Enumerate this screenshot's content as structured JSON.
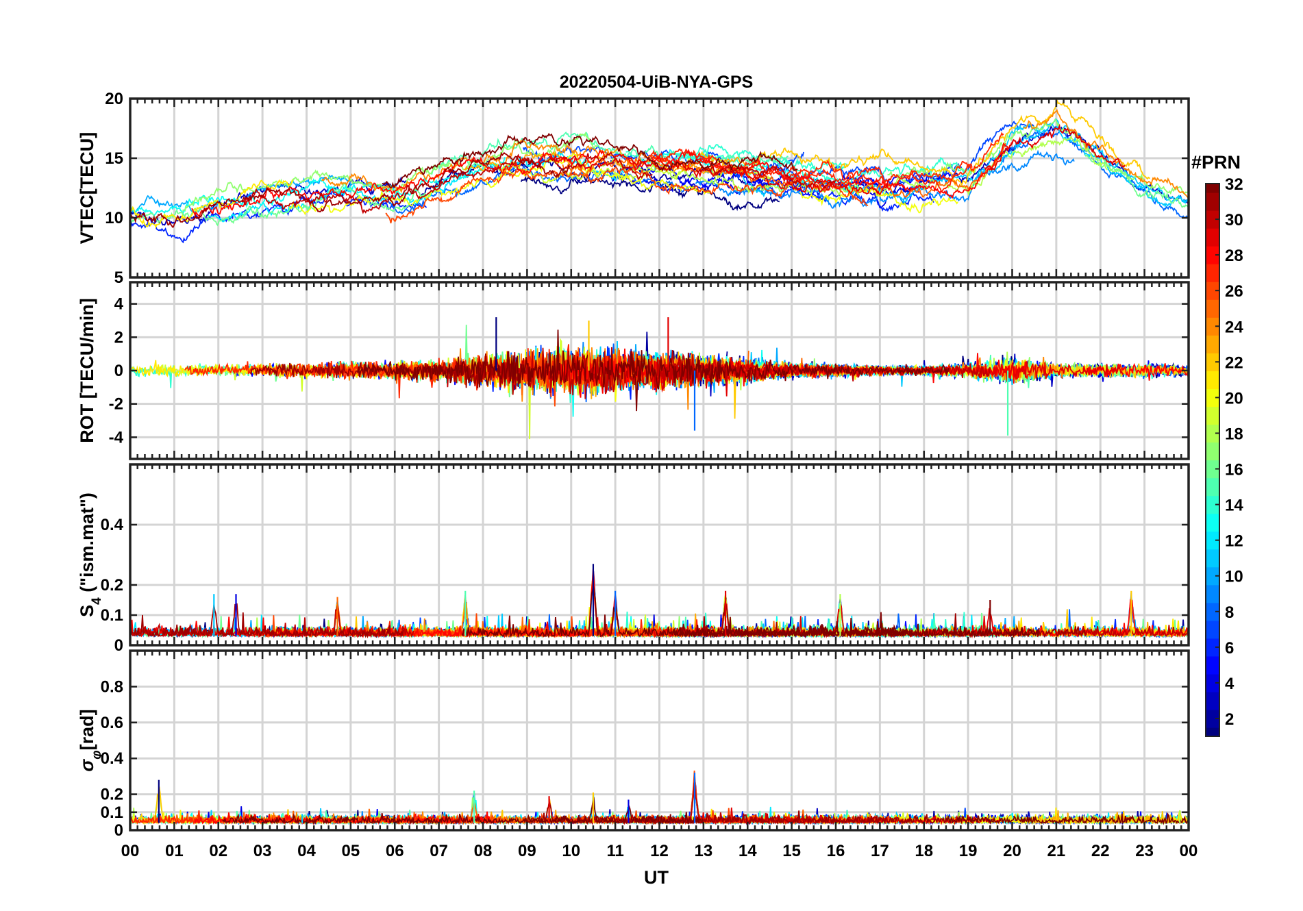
{
  "figure_title": "20220504-UiB-NYA-GPS",
  "x_axis": {
    "label": "UT",
    "tick_labels": [
      "00",
      "01",
      "02",
      "03",
      "04",
      "05",
      "06",
      "07",
      "08",
      "09",
      "10",
      "11",
      "12",
      "13",
      "14",
      "15",
      "16",
      "17",
      "18",
      "19",
      "20",
      "21",
      "22",
      "23",
      "00"
    ]
  },
  "colorbar": {
    "title": "#PRN",
    "range": [
      1,
      32
    ],
    "tick_values": [
      2,
      4,
      6,
      8,
      10,
      12,
      14,
      16,
      18,
      20,
      22,
      24,
      26,
      28,
      30,
      32
    ],
    "tick_labels": [
      "2",
      "4",
      "6",
      "8",
      "10",
      "12",
      "14",
      "16",
      "18",
      "20",
      "22",
      "24",
      "26",
      "28",
      "30",
      "32"
    ],
    "colormap": "jet"
  },
  "chart_data": [
    {
      "type": "line",
      "panel": "vtec",
      "ylabel": "VTEC[TECU]",
      "xlim": [
        0,
        24
      ],
      "ylim": [
        5,
        20
      ],
      "y_ticks": [
        5,
        10,
        15,
        20
      ],
      "y_tick_labels": [
        "5",
        "10",
        "15",
        "20"
      ],
      "grid": true,
      "hourly_trend": [
        10.2,
        9.6,
        11.0,
        11.6,
        12.0,
        12.2,
        11.8,
        13.0,
        14.4,
        15.0,
        15.0,
        14.6,
        14.2,
        14.0,
        13.6,
        13.4,
        12.8,
        12.6,
        12.8,
        13.0,
        16.2,
        17.4,
        15.0,
        12.6,
        11.2
      ],
      "series_count": 32
    },
    {
      "type": "line",
      "panel": "rot",
      "ylabel": "ROT [TECU/min]",
      "xlim": [
        0,
        24
      ],
      "ylim": [
        -5.3,
        5.3
      ],
      "y_ticks": [
        -4,
        -2,
        0,
        2,
        4
      ],
      "y_tick_labels": [
        "-4",
        "-2",
        "0",
        "2",
        "4"
      ],
      "grid": true,
      "hourly_amplitude": [
        0.5,
        0.4,
        0.4,
        0.4,
        0.5,
        0.6,
        0.6,
        0.7,
        1.1,
        1.4,
        1.6,
        1.5,
        1.2,
        1.0,
        0.8,
        0.5,
        0.4,
        0.3,
        0.3,
        0.5,
        0.8,
        0.5,
        0.4,
        0.5,
        0.4
      ],
      "notable_extremes": [
        {
          "x": 8.3,
          "y": 3.2
        },
        {
          "x": 12.8,
          "y": -3.6
        },
        {
          "x": 19.9,
          "y": -3.9
        },
        {
          "x": 10.4,
          "y": 3.0
        },
        {
          "x": 12.2,
          "y": 3.2
        }
      ],
      "series_count": 32
    },
    {
      "type": "line",
      "panel": "s4",
      "ylabel": "S₄ (\"ism.mat\")",
      "ylabel_main": "S",
      "ylabel_sub": "4",
      "ylabel_rest": " (\"ism.mat\")",
      "xlim": [
        0,
        24
      ],
      "ylim": [
        0,
        0.6
      ],
      "y_ticks": [
        0,
        0.1,
        0.2,
        0.4
      ],
      "y_tick_labels": [
        "0",
        "0.1",
        "0.2",
        "0.4"
      ],
      "grid": true,
      "baseline": 0.03,
      "peaks": [
        {
          "x": 10.5,
          "y": 0.27
        },
        {
          "x": 11.0,
          "y": 0.18
        },
        {
          "x": 7.6,
          "y": 0.18
        },
        {
          "x": 22.7,
          "y": 0.18
        },
        {
          "x": 13.5,
          "y": 0.18
        },
        {
          "x": 2.4,
          "y": 0.17
        },
        {
          "x": 1.9,
          "y": 0.17
        },
        {
          "x": 16.1,
          "y": 0.17
        },
        {
          "x": 4.7,
          "y": 0.16
        },
        {
          "x": 19.5,
          "y": 0.15
        }
      ],
      "series_count": 32
    },
    {
      "type": "line",
      "panel": "sigma_phi",
      "ylabel": "σφ[rad]",
      "ylabel_main": "σ",
      "ylabel_sub": "φ",
      "ylabel_rest": "[rad]",
      "xlim": [
        0,
        24
      ],
      "ylim": [
        0,
        1.0
      ],
      "y_ticks": [
        0,
        0.1,
        0.2,
        0.4,
        0.6,
        0.8
      ],
      "y_tick_labels": [
        "0",
        "0.1",
        "0.2",
        "0.4",
        "0.6",
        "0.8"
      ],
      "grid": true,
      "baseline": 0.04,
      "peaks": [
        {
          "x": 0.65,
          "y": 0.28
        },
        {
          "x": 12.8,
          "y": 0.32
        },
        {
          "x": 7.8,
          "y": 0.22
        },
        {
          "x": 10.5,
          "y": 0.21
        },
        {
          "x": 9.5,
          "y": 0.19
        },
        {
          "x": 11.3,
          "y": 0.17
        },
        {
          "x": 3.9,
          "y": 0.09
        },
        {
          "x": 23.8,
          "y": 0.11
        }
      ],
      "series_count": 32
    }
  ]
}
